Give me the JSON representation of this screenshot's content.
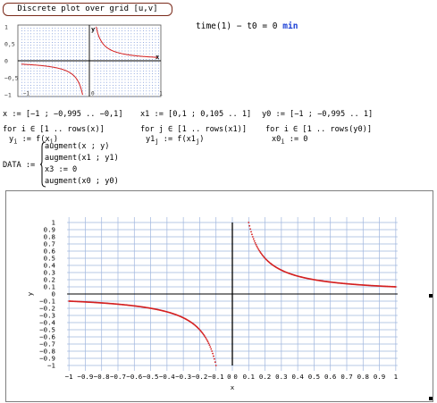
{
  "header": {
    "title": "Discrete plot over grid [u,v]",
    "time_expr": "time(1) − t0 = 0",
    "time_unit": "min"
  },
  "definitions": {
    "x_def": "x := [−1 ; −0,995 .. −0,1]",
    "x1_def": "x1 := [0,1 ; 0,105 .. 1]",
    "y0_def": "y0 := [−1 ; −0,995 .. 1]",
    "for_x": "for  i ∈ [1 .. rows(x)]",
    "for_x1": "for  j ∈ [1 .. rows(x1)]",
    "for_y0": "for  i ∈ [1 .. rows(y0)]",
    "body_x": "y",
    "body_x_sub": "i",
    "body_x_rhs": ":= f(x",
    "body_x_rhs_sub": "i",
    "body_x_end": ")",
    "body_x1": "y1",
    "body_x1_sub": "j",
    "body_x1_rhs": ":= f(x1",
    "body_x1_rhs_sub": "j",
    "body_x1_end": ")",
    "body_y0": "x0",
    "body_y0_sub": "i",
    "body_y0_rhs": ":= 0",
    "data_label": "DATA :=",
    "data_rows": [
      "augment(x ; y)",
      "augment(x1 ; y1)",
      "x3 := 0",
      "augment(x0 ; y0)"
    ]
  },
  "small_plot": {
    "y_ticks": [
      "1",
      "0,5",
      "0",
      "−0,5",
      "−1"
    ],
    "x_ticks": [
      "−1",
      "0",
      "1"
    ],
    "x_axis_label": "x",
    "y_axis_label": "y"
  },
  "chart_data": {
    "type": "scatter",
    "title": "",
    "xlabel": "x",
    "ylabel": "y",
    "xlim": [
      -1.05,
      1.05
    ],
    "ylim": [
      -1.05,
      1.05
    ],
    "grid": true,
    "x_tick_labels": [
      "−1",
      "−0.9",
      "−0.8",
      "−0.7",
      "−0.6",
      "−0.5",
      "−0.4",
      "−0.3",
      "−0.2",
      "−0.1",
      "0",
      "0",
      "0.1",
      "0.2",
      "0.3",
      "0.4",
      "0.5",
      "0.6",
      "0.7",
      "0.8",
      "0.9",
      "1"
    ],
    "y_tick_labels": [
      "1",
      "0.9",
      "0.8",
      "0.7",
      "0.6",
      "0.5",
      "0.4",
      "0.3",
      "0.2",
      "0.1",
      "0",
      "−0.1",
      "−0.2",
      "−0.3",
      "−0.4",
      "−0.5",
      "−0.6",
      "−0.7",
      "−0.8",
      "−0.9",
      "−1"
    ],
    "series": [
      {
        "color": "#d42020",
        "function": "y = 0.1/x",
        "x_start": -1,
        "x_end": -0.1,
        "x_step": 0.005
      },
      {
        "color": "#d42020",
        "function": "y = 0.1/x",
        "x_start": 0.1,
        "x_end": 1,
        "x_step": 0.005
      },
      {
        "color": "#000000",
        "line": "vertical axis x = 0",
        "x": 0,
        "y_start": -1,
        "y_end": 1
      }
    ]
  },
  "colors": {
    "curve": "#d42020",
    "grid": "#9fb6de",
    "axis": "#000000",
    "unit": "#1a3fd6"
  }
}
